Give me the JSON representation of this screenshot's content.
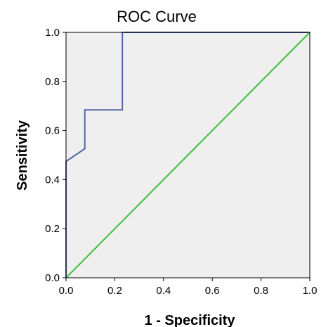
{
  "chart_data": {
    "type": "line",
    "title": "ROC Curve",
    "xlabel": "1 - Specificity",
    "ylabel": "Sensitivity",
    "xlim": [
      0,
      1
    ],
    "ylim": [
      0,
      1
    ],
    "x_ticks": [
      "0.0",
      "0.2",
      "0.4",
      "0.6",
      "0.8",
      "1.0"
    ],
    "y_ticks": [
      "0.0",
      "0.2",
      "0.4",
      "0.6",
      "0.8",
      "1.0"
    ],
    "grid": false,
    "plot_background": "#efefef",
    "series": [
      {
        "color": "#5166a8",
        "points": [
          [
            0.0,
            0.0
          ],
          [
            0.0,
            0.474
          ],
          [
            0.077,
            0.526
          ],
          [
            0.077,
            0.684
          ],
          [
            0.231,
            0.684
          ],
          [
            0.231,
            1.0
          ],
          [
            1.0,
            1.0
          ]
        ]
      },
      {
        "color": "#3cc03c",
        "points": [
          [
            0.0,
            0.0
          ],
          [
            1.0,
            1.0
          ]
        ]
      }
    ]
  }
}
